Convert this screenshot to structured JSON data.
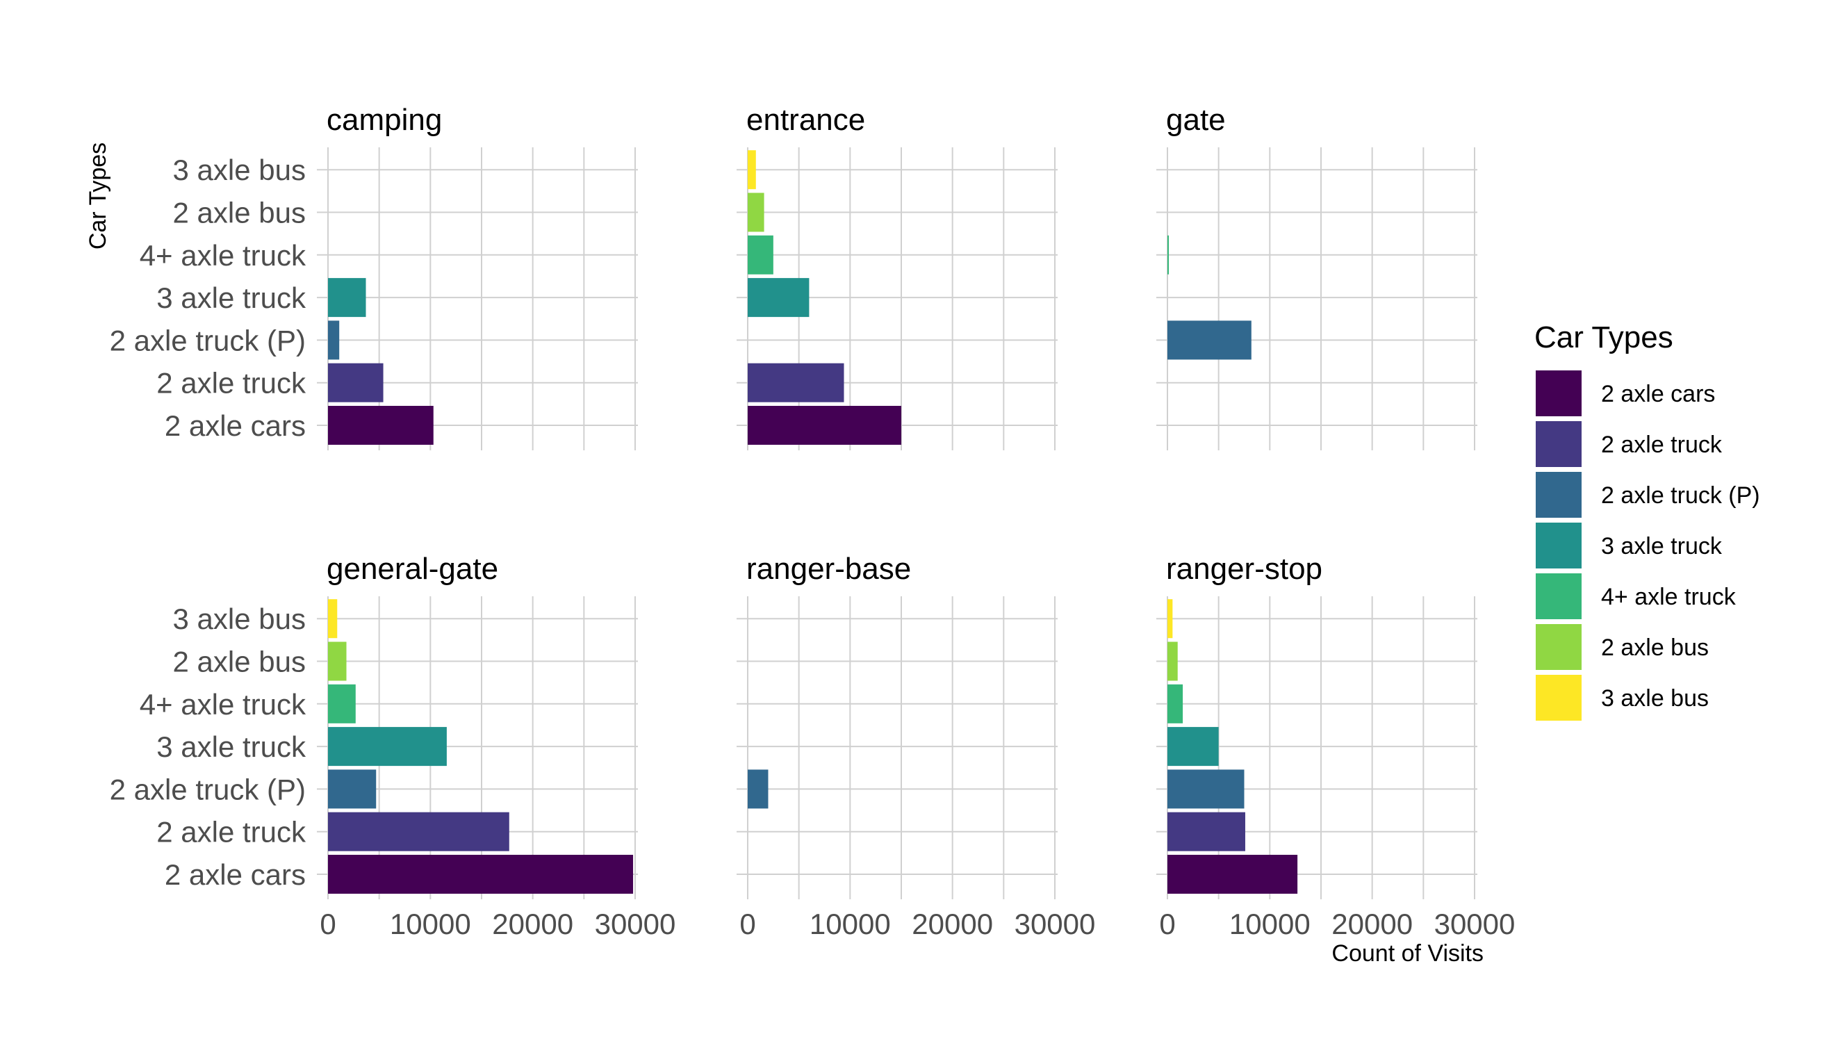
{
  "chart_data": {
    "type": "bar",
    "orientation": "horizontal",
    "facets": [
      "camping",
      "entrance",
      "gate",
      "general-gate",
      "ranger-base",
      "ranger-stop"
    ],
    "categories": [
      "2 axle cars",
      "2 axle truck",
      "2 axle truck (P)",
      "3 axle truck",
      "4+ axle truck",
      "2 axle bus",
      "3 axle bus"
    ],
    "series": [
      {
        "facet": "camping",
        "values": [
          10300,
          5400,
          1100,
          3700,
          0,
          0,
          0
        ]
      },
      {
        "facet": "entrance",
        "values": [
          15000,
          9400,
          0,
          6000,
          2500,
          1600,
          800
        ]
      },
      {
        "facet": "gate",
        "values": [
          0,
          0,
          8200,
          0,
          100,
          0,
          0
        ]
      },
      {
        "facet": "general-gate",
        "values": [
          29800,
          17700,
          4700,
          11600,
          2700,
          1800,
          900
        ]
      },
      {
        "facet": "ranger-base",
        "values": [
          0,
          0,
          2000,
          0,
          0,
          0,
          0
        ]
      },
      {
        "facet": "ranger-stop",
        "values": [
          12700,
          7600,
          7500,
          5000,
          1500,
          1000,
          500
        ]
      }
    ],
    "xlim": [
      0,
      30000
    ],
    "x_ticks": [
      "0",
      "10000",
      "20000",
      "30000"
    ],
    "xlabel": "Count of Visits",
    "ylabel": "Car Types",
    "grid": true,
    "legend": {
      "title": "Car Types",
      "position": "right",
      "entries": [
        "2 axle cars",
        "2 axle truck",
        "2 axle truck (P)",
        "3 axle truck",
        "4+ axle truck",
        "2 axle bus",
        "3 axle bus"
      ]
    },
    "colors": [
      "#440154",
      "#443983",
      "#31688e",
      "#21918c",
      "#35b779",
      "#90d743",
      "#fde725"
    ]
  }
}
